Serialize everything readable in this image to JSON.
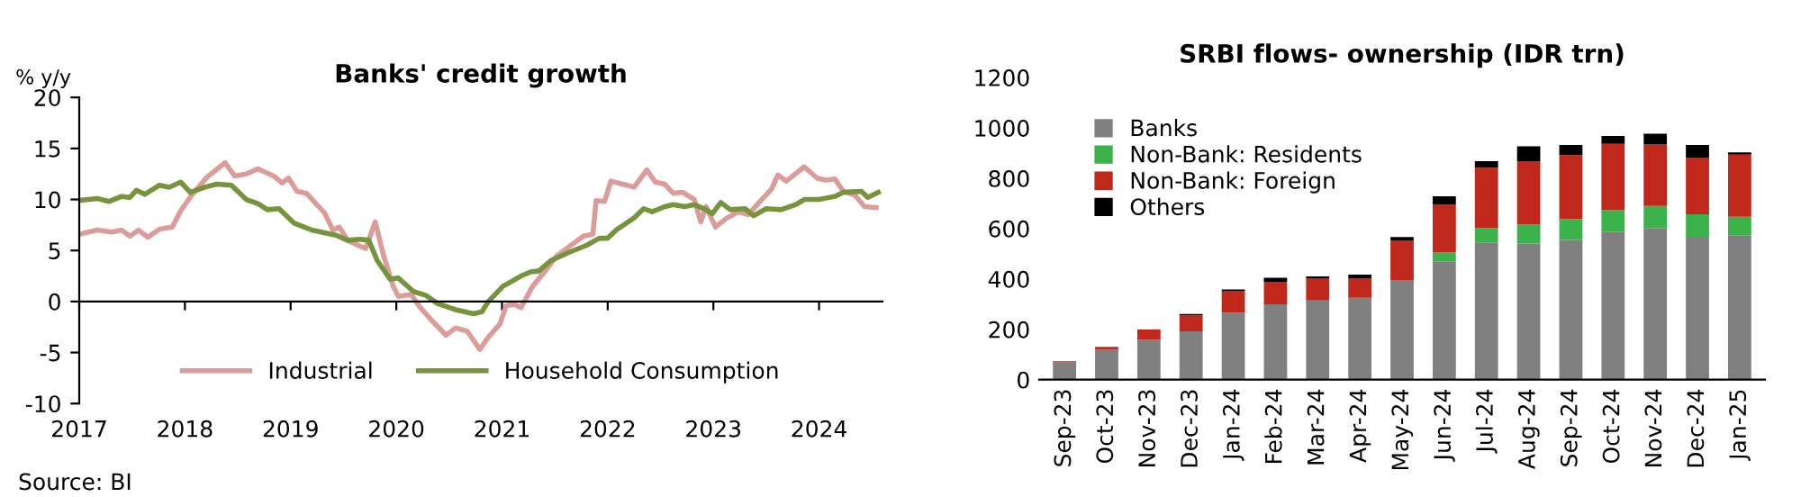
{
  "chart_data": [
    {
      "type": "line",
      "title": "Banks' credit growth",
      "ylabel": "% y/y",
      "ylim": [
        -10,
        20
      ],
      "yticks": [
        -10,
        -5,
        0,
        5,
        10,
        15,
        20
      ],
      "xlim": [
        2017,
        2024.6
      ],
      "xticks": [
        2017,
        2018,
        2019,
        2020,
        2021,
        2022,
        2023,
        2024
      ],
      "legend": "bottom",
      "marker": "none",
      "line_style": "solid",
      "annotations": [
        "Source: BI"
      ],
      "series": [
        {
          "name": "Industrial",
          "color": "#dc9c9a",
          "x": [
            2017.0,
            2017.17,
            2017.31,
            2017.4,
            2017.48,
            2017.56,
            2017.65,
            2017.76,
            2017.88,
            2017.96,
            2018.07,
            2018.21,
            2018.38,
            2018.47,
            2018.58,
            2018.69,
            2018.84,
            2018.92,
            2018.98,
            2019.06,
            2019.15,
            2019.32,
            2019.4,
            2019.46,
            2019.54,
            2019.66,
            2019.71,
            2019.8,
            2019.88,
            2019.97,
            2020.02,
            2020.14,
            2020.22,
            2020.33,
            2020.47,
            2020.56,
            2020.67,
            2020.79,
            2020.87,
            2020.98,
            2021.04,
            2021.12,
            2021.18,
            2021.29,
            2021.41,
            2021.52,
            2021.69,
            2021.77,
            2021.86,
            2021.89,
            2021.97,
            2022.03,
            2022.14,
            2022.25,
            2022.37,
            2022.45,
            2022.54,
            2022.62,
            2022.71,
            2022.82,
            2022.88,
            2022.93,
            2023.02,
            2023.13,
            2023.24,
            2023.33,
            2023.44,
            2023.55,
            2023.61,
            2023.69,
            2023.86,
            2023.98,
            2024.06,
            2024.15,
            2024.23,
            2024.34,
            2024.43,
            2024.54
          ],
          "values": [
            6.6,
            7.0,
            6.8,
            7.0,
            6.4,
            7.0,
            6.3,
            7.1,
            7.3,
            8.9,
            10.5,
            12.2,
            13.6,
            12.3,
            12.5,
            13.0,
            12.3,
            11.6,
            12.1,
            10.8,
            10.6,
            8.7,
            7.0,
            7.3,
            6.0,
            5.4,
            5.2,
            7.8,
            4.5,
            1.5,
            0.5,
            0.7,
            -0.5,
            -1.8,
            -3.3,
            -2.6,
            -2.9,
            -4.7,
            -3.5,
            -2.2,
            -0.4,
            -0.3,
            -0.6,
            1.5,
            3.0,
            4.5,
            5.8,
            6.4,
            6.6,
            9.9,
            9.8,
            11.8,
            11.5,
            11.2,
            12.9,
            11.7,
            11.5,
            10.6,
            10.7,
            10.0,
            7.8,
            9.3,
            7.3,
            8.2,
            8.8,
            8.5,
            9.8,
            11.0,
            12.4,
            11.8,
            13.2,
            12.1,
            11.9,
            12.0,
            10.8,
            10.4,
            9.3,
            9.2
          ]
        },
        {
          "name": "Household Consumption",
          "color": "#77933c",
          "x": [
            2017.0,
            2017.17,
            2017.28,
            2017.4,
            2017.48,
            2017.54,
            2017.62,
            2017.76,
            2017.85,
            2017.96,
            2018.05,
            2018.19,
            2018.3,
            2018.44,
            2018.58,
            2018.69,
            2018.78,
            2018.89,
            2019.03,
            2019.2,
            2019.43,
            2019.54,
            2019.66,
            2019.74,
            2019.82,
            2019.94,
            2020.02,
            2020.16,
            2020.28,
            2020.39,
            2020.56,
            2020.73,
            2020.81,
            2020.87,
            2021.01,
            2021.18,
            2021.27,
            2021.35,
            2021.46,
            2021.63,
            2021.8,
            2021.92,
            2022.0,
            2022.08,
            2022.25,
            2022.34,
            2022.42,
            2022.54,
            2022.62,
            2022.73,
            2022.82,
            2022.93,
            2022.99,
            2023.07,
            2023.16,
            2023.3,
            2023.38,
            2023.5,
            2023.64,
            2023.78,
            2023.86,
            2024.0,
            2024.15,
            2024.23,
            2024.4,
            2024.46,
            2024.56
          ],
          "values": [
            9.9,
            10.1,
            9.8,
            10.3,
            10.2,
            10.9,
            10.5,
            11.4,
            11.2,
            11.7,
            10.7,
            11.2,
            11.5,
            11.4,
            10.0,
            9.6,
            9.0,
            9.1,
            7.7,
            7.0,
            6.5,
            6.0,
            6.1,
            6.0,
            4.0,
            2.2,
            2.3,
            1.0,
            0.6,
            -0.2,
            -0.8,
            -1.2,
            -1.0,
            0.0,
            1.5,
            2.5,
            2.9,
            3.0,
            4.0,
            4.8,
            5.5,
            6.2,
            6.2,
            7.0,
            8.2,
            9.1,
            8.8,
            9.3,
            9.5,
            9.3,
            9.5,
            9.0,
            8.6,
            9.7,
            9.0,
            9.1,
            8.4,
            9.1,
            9.0,
            9.5,
            10.0,
            10.0,
            10.3,
            10.7,
            10.8,
            10.2,
            10.7
          ]
        }
      ]
    },
    {
      "type": "bar",
      "stacked": true,
      "title": "SRBI flows- ownership (IDR trn)",
      "ylim": [
        0,
        1200
      ],
      "yticks": [
        0,
        200,
        400,
        600,
        800,
        1000,
        1200
      ],
      "grid": false,
      "legend": "top left",
      "categories": [
        "Sep-23",
        "Oct-23",
        "Nov-23",
        "Dec-23",
        "Jan-24",
        "Feb-24",
        "Mar-24",
        "Apr-24",
        "May-24",
        "Jun-24",
        "Jul-24",
        "Aug-24",
        "Sep-24",
        "Oct-24",
        "Nov-24",
        "Dec-24",
        "Jan-25"
      ],
      "series": [
        {
          "name": "Banks",
          "color": "#808080",
          "values": [
            69,
            119,
            159,
            192,
            266,
            299,
            315,
            325,
            396,
            470,
            543,
            541,
            555,
            588,
            602,
            564,
            572
          ]
        },
        {
          "name": "Non-Bank: Residents",
          "color": "#3cb34a",
          "values": [
            0,
            0,
            0,
            0,
            0,
            0,
            0,
            0,
            0,
            35,
            59,
            76,
            83,
            85,
            88,
            93,
            75
          ]
        },
        {
          "name": "Non-Bank: Foreign",
          "color": "#c0281c",
          "values": [
            4,
            11,
            40,
            64,
            87,
            90,
            88,
            76,
            157,
            190,
            240,
            251,
            254,
            264,
            244,
            223,
            247
          ]
        },
        {
          "name": "Others",
          "color": "#000000",
          "values": [
            0,
            0,
            0,
            5,
            5,
            16,
            7,
            16,
            14,
            33,
            26,
            59,
            40,
            31,
            43,
            52,
            9
          ]
        }
      ]
    }
  ]
}
